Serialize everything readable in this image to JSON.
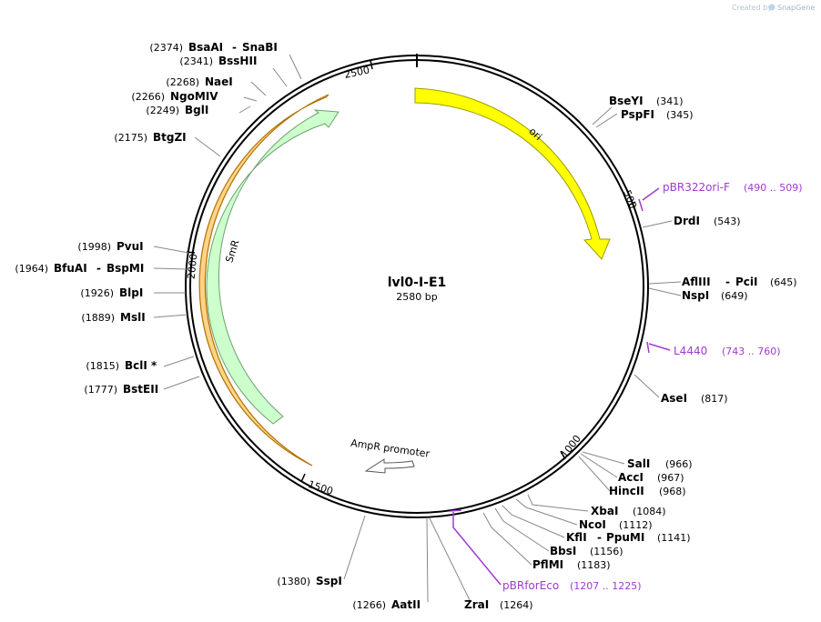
{
  "credit": {
    "prefix": "Created by",
    "brand": "SnapGene"
  },
  "plasmid": {
    "name": "lvl0-I-E1",
    "size_label": "2580 bp",
    "length": 2580
  },
  "ticks": [
    {
      "pos": 2500,
      "label": "2500"
    },
    {
      "pos": 500,
      "label": "500"
    },
    {
      "pos": 1000,
      "label": "1000"
    },
    {
      "pos": 1500,
      "label": "1500"
    },
    {
      "pos": 2000,
      "label": "2000"
    }
  ],
  "features": [
    {
      "name": "ori",
      "start": 1,
      "end": 589,
      "fill": "#ffff00",
      "stroke": "#9e9e00",
      "direction": "cw",
      "label": "ori"
    },
    {
      "name": "SmR",
      "start": 1350,
      "end": 2440,
      "fill": "#ccffcc",
      "stroke": "#6f9f6f",
      "direction": "cw",
      "label": "SmR"
    },
    {
      "name": "AmpR promoter",
      "start": 1500,
      "end": 1550,
      "fill": "#ffffff",
      "stroke": "#555555",
      "direction": "ccw",
      "label": "AmpR promoter"
    },
    {
      "name": "orange-band",
      "start": 1550,
      "end": 2460,
      "fill": "#ffd488",
      "stroke": "#b07000",
      "direction": "cw",
      "label": ""
    }
  ],
  "enzymes": [
    {
      "name": "BsaAI",
      "name2": "SnaBI",
      "pos": "(2374)"
    },
    {
      "name": "BssHII",
      "name2": "",
      "pos": "(2341)"
    },
    {
      "name": "NaeI",
      "name2": "",
      "pos": "(2268)"
    },
    {
      "name": "NgoMIV",
      "name2": "",
      "pos": "(2266)"
    },
    {
      "name": "BglI",
      "name2": "",
      "pos": "(2249)"
    },
    {
      "name": "BtgZI",
      "name2": "",
      "pos": "(2175)"
    },
    {
      "name": "PvuI",
      "name2": "",
      "pos": "(1998)"
    },
    {
      "name": "BfuAI",
      "name2": "BspMI",
      "pos": "(1964)"
    },
    {
      "name": "BlpI",
      "name2": "",
      "pos": "(1926)"
    },
    {
      "name": "MslI",
      "name2": "",
      "pos": "(1889)"
    },
    {
      "name": "BclI *",
      "name2": "",
      "pos": "(1815)"
    },
    {
      "name": "BstEII",
      "name2": "",
      "pos": "(1777)"
    },
    {
      "name": "SspI",
      "name2": "",
      "pos": "(1380)"
    },
    {
      "name": "AatII",
      "name2": "",
      "pos": "(1266)"
    },
    {
      "name": "ZraI",
      "name2": "",
      "pos": "(1264)"
    },
    {
      "name": "BseYI",
      "name2": "",
      "pos": "(341)"
    },
    {
      "name": "PspFI",
      "name2": "",
      "pos": "(345)"
    },
    {
      "name": "DrdI",
      "name2": "",
      "pos": "(543)"
    },
    {
      "name": "AflIII",
      "name2": "PciI",
      "pos": "(645)"
    },
    {
      "name": "NspI",
      "name2": "",
      "pos": "(649)"
    },
    {
      "name": "AseI",
      "name2": "",
      "pos": "(817)"
    },
    {
      "name": "SalI",
      "name2": "",
      "pos": "(966)"
    },
    {
      "name": "AccI",
      "name2": "",
      "pos": "(967)"
    },
    {
      "name": "HincII",
      "name2": "",
      "pos": "(968)"
    },
    {
      "name": "XbaI",
      "name2": "",
      "pos": "(1084)"
    },
    {
      "name": "NcoI",
      "name2": "",
      "pos": "(1112)"
    },
    {
      "name": "KflI",
      "name2": "PpuMI",
      "pos": "(1141)"
    },
    {
      "name": "BbsI",
      "name2": "",
      "pos": "(1156)"
    },
    {
      "name": "PflMI",
      "name2": "",
      "pos": "(1183)"
    }
  ],
  "primers": [
    {
      "name": "pBR322ori-F",
      "range": "(490 .. 509)",
      "pos": 499
    },
    {
      "name": "L4440",
      "range": "(743 .. 760)",
      "pos": 751
    },
    {
      "name": "pBRforEco",
      "range": "(1207 .. 1225)",
      "pos": 1216
    }
  ],
  "colors": {
    "backbone": "#000000",
    "leader": "#808080",
    "primer": "#a03ad0"
  }
}
